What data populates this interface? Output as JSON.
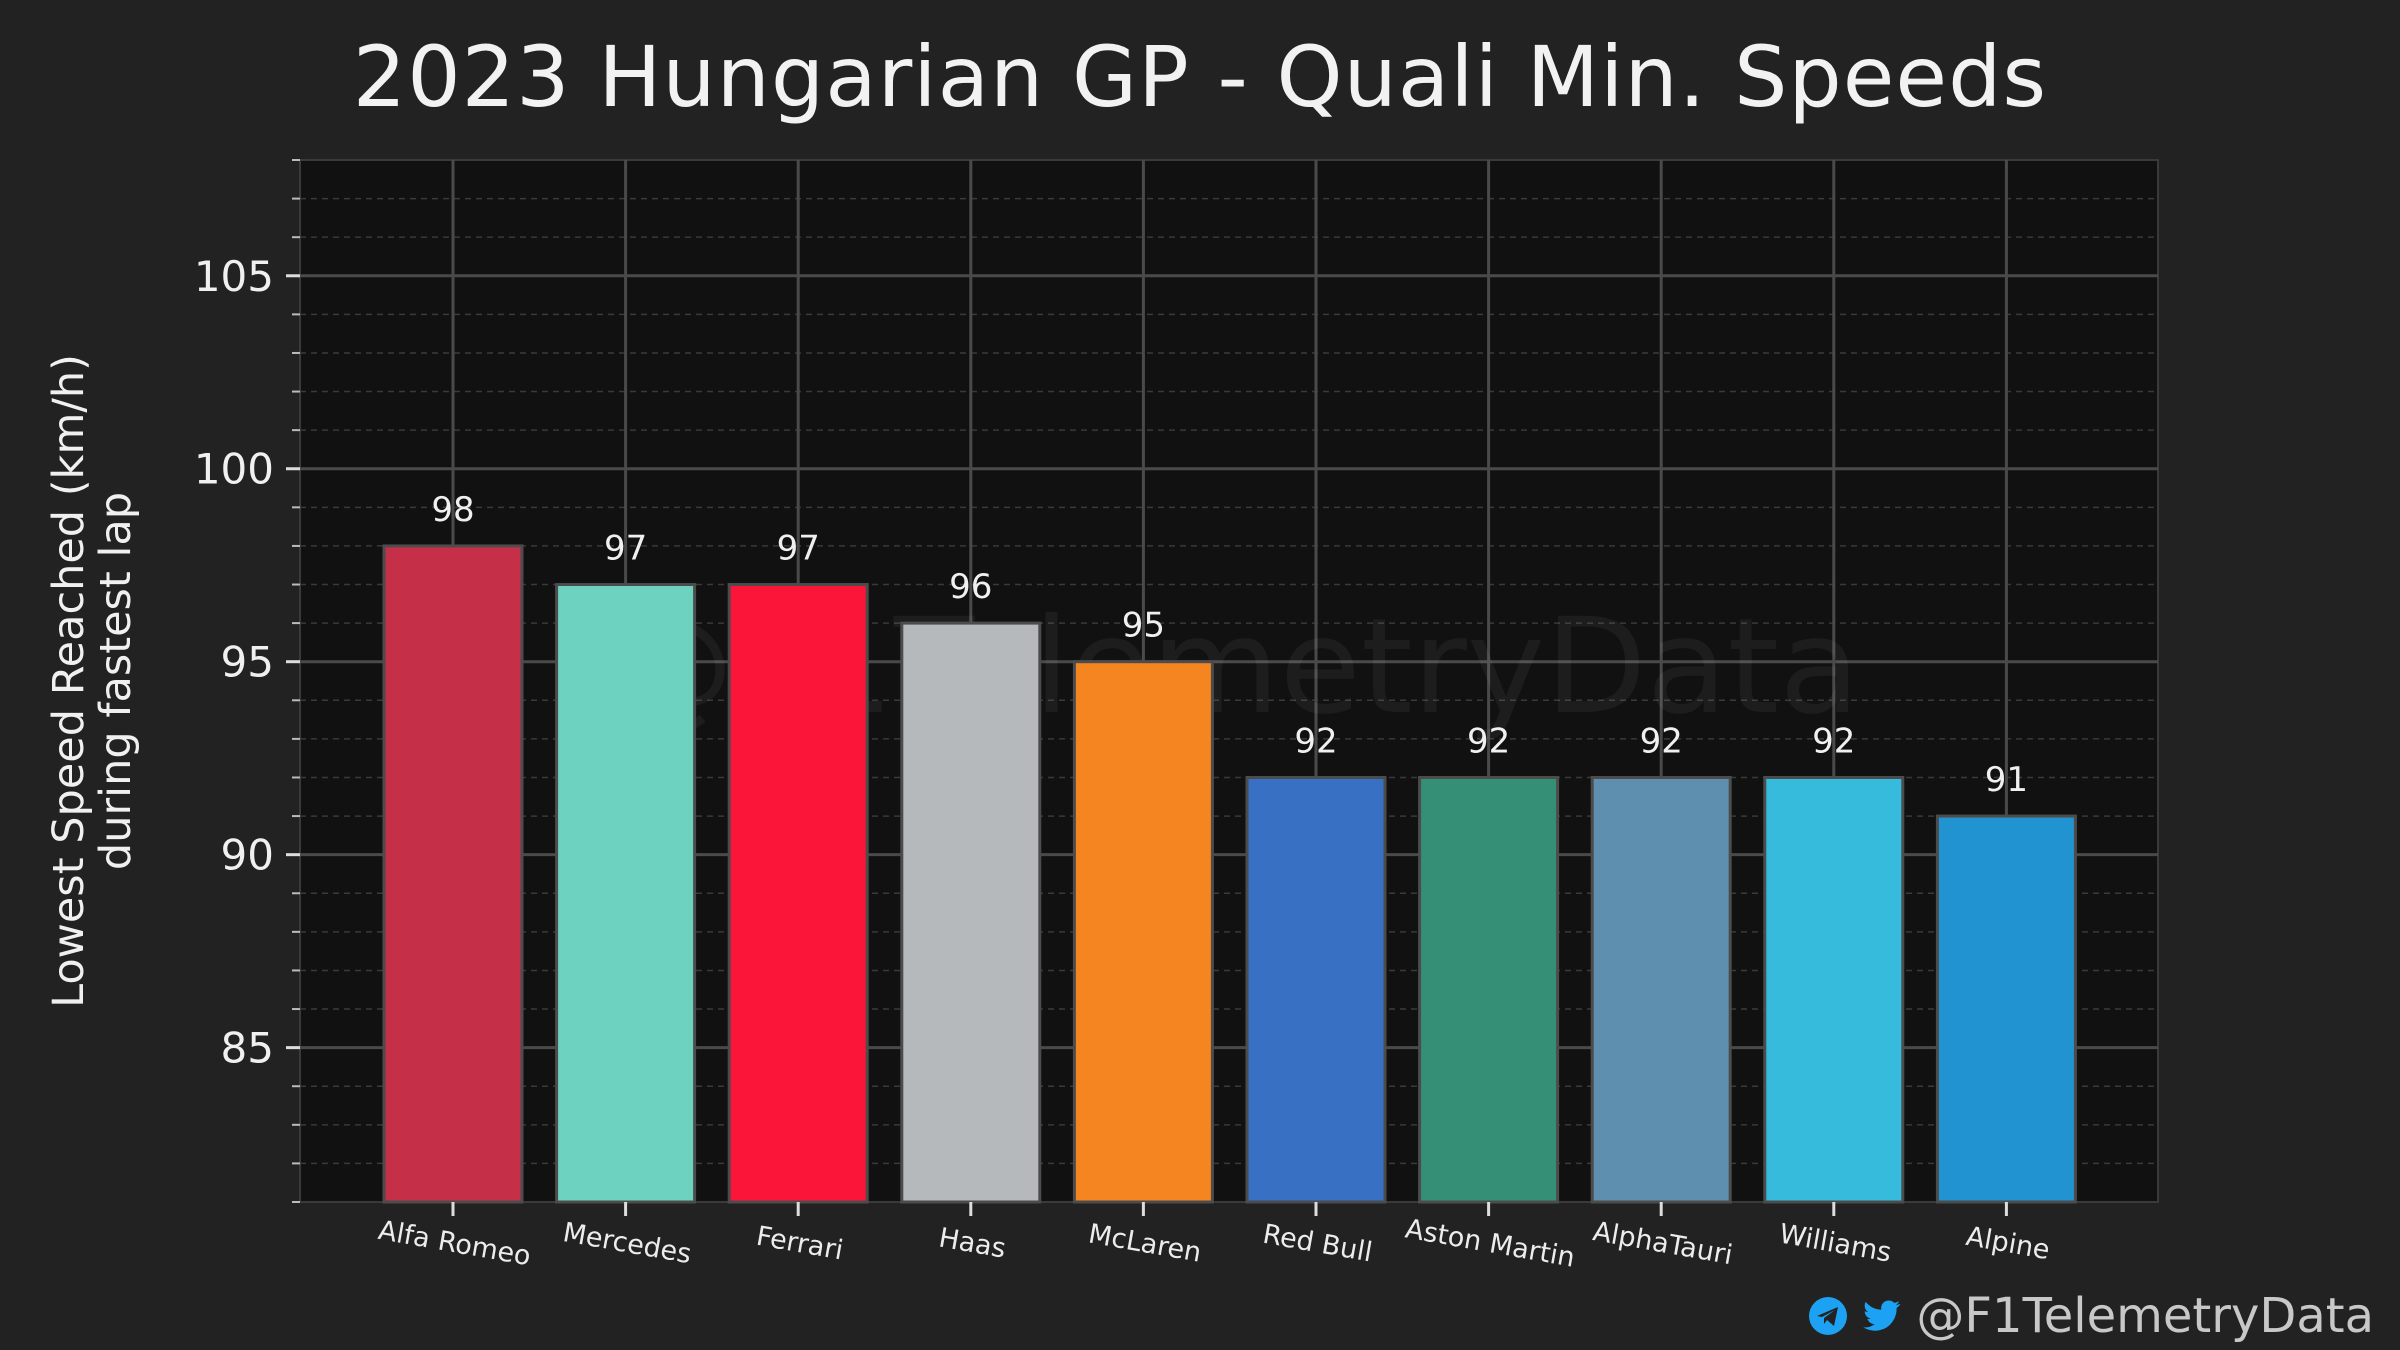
{
  "chart_data": {
    "type": "bar",
    "title": "2023 Hungarian GP - Quali Min. Speeds",
    "ylabel": [
      "Lowest Speed Reached (km/h)",
      "during fastest lap"
    ],
    "xlabel": "",
    "categories": [
      "Alfa Romeo",
      "Mercedes",
      "Ferrari",
      "Haas",
      "McLaren",
      "Red Bull",
      "Aston Martin",
      "AlphaTauri",
      "Williams",
      "Alpine"
    ],
    "values": [
      98,
      97,
      97,
      96,
      95,
      92,
      92,
      92,
      92,
      91
    ],
    "data_labels": [
      "98",
      "97",
      "97",
      "96",
      "95",
      "92",
      "92",
      "92",
      "92",
      "91"
    ],
    "colors": [
      "#c52f47",
      "#6dd3c0",
      "#fb1539",
      "#b5b9bc",
      "#f58521",
      "#3870c4",
      "#358f77",
      "#5e8faf",
      "#36bbdd",
      "#2293d1"
    ],
    "ylim": [
      81,
      108
    ],
    "yticks": [
      85,
      90,
      95,
      100,
      105
    ],
    "ytick_labels": [
      "85",
      "90",
      "95",
      "100",
      "105"
    ],
    "minor_step": 1,
    "grid": true,
    "legend": "none"
  },
  "watermark": "@F1TelemetryData",
  "footer": {
    "handle": "@F1TelemetryData",
    "icons": [
      "telegram-icon",
      "twitter-icon"
    ],
    "icon_color": "#1da1f2"
  },
  "colors": {
    "background": "#222222",
    "plot_background": "#111111",
    "grid_major": "#4a4a4a",
    "grid_minor": "#3a3a3a"
  }
}
